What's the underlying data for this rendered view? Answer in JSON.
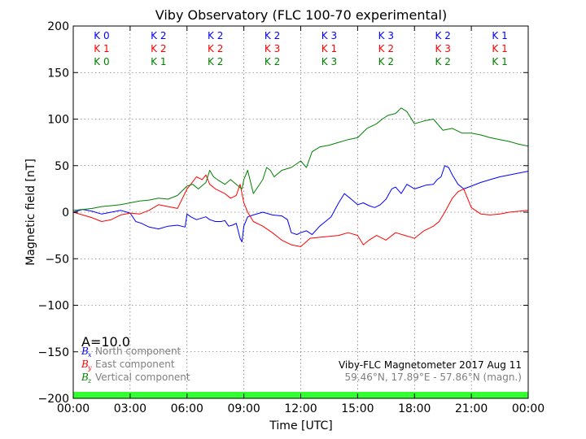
{
  "chart_data": {
    "type": "line",
    "title": "Viby Observatory (FLC 100-70 experimental)",
    "xlabel": "Time [UTC]",
    "ylabel": "Magnetic field [nT]",
    "xlim": [
      0,
      24
    ],
    "ylim": [
      -200,
      200
    ],
    "x_ticks": [
      0,
      3,
      6,
      9,
      12,
      15,
      18,
      21,
      24
    ],
    "x_tick_labels": [
      "00:00",
      "03:00",
      "06:00",
      "09:00",
      "12:00",
      "15:00",
      "18:00",
      "21:00",
      "00:00"
    ],
    "y_ticks": [
      -200,
      -150,
      -100,
      -50,
      0,
      50,
      100,
      150,
      200
    ],
    "y_tick_labels": [
      "−200",
      "−150",
      "−100",
      "−50",
      "0",
      "50",
      "100",
      "150",
      "200"
    ],
    "grid": true,
    "legend_position": "bottom-left",
    "activity_label": "A=10.0",
    "info_line1": "Viby-FLC Magnetometer 2017 Aug 11",
    "info_line2": "59.46°N, 17.89°E - 57.86°N (magn.)",
    "k_indices": {
      "x_centers": [
        1.5,
        4.5,
        7.5,
        10.5,
        13.5,
        16.5,
        19.5,
        22.5
      ],
      "rows": [
        {
          "labels": [
            "K 0",
            "K 2",
            "K 2",
            "K 2",
            "K 3",
            "K 3",
            "K 2",
            "K 1"
          ],
          "color": "#0000ff"
        },
        {
          "labels": [
            "K 1",
            "K 2",
            "K 2",
            "K 3",
            "K 1",
            "K 2",
            "K 3",
            "K 1"
          ],
          "color": "#ff0000"
        },
        {
          "labels": [
            "K 0",
            "K 1",
            "K 2",
            "K 2",
            "K 3",
            "K 2",
            "K 2",
            "K 1"
          ],
          "color": "#008000"
        }
      ]
    },
    "bottom_band": {
      "y_from": -200,
      "y_to": -193,
      "color": "#33ff33"
    },
    "series": [
      {
        "name": "North component",
        "symbol": "B",
        "subscript": "x",
        "color": "#0000ff",
        "x": [
          0,
          0.5,
          1,
          1.5,
          2,
          2.5,
          3,
          3.3,
          3.6,
          4,
          4.5,
          5,
          5.5,
          5.9,
          6.0,
          6.2,
          6.5,
          7.0,
          7.2,
          7.5,
          7.8,
          8.0,
          8.2,
          8.4,
          8.6,
          8.8,
          8.9,
          9.0,
          9.2,
          9.5,
          10.0,
          10.5,
          11.0,
          11.3,
          11.5,
          11.8,
          12.0,
          12.3,
          12.6,
          13.0,
          13.3,
          13.6,
          14.0,
          14.3,
          14.6,
          15.0,
          15.3,
          15.6,
          15.9,
          16.2,
          16.5,
          16.8,
          17.0,
          17.3,
          17.6,
          18.0,
          18.3,
          18.6,
          19.0,
          19.2,
          19.4,
          19.6,
          19.8,
          20.0,
          20.3,
          20.6,
          21.0,
          21.5,
          22.0,
          22.5,
          23.0,
          23.5,
          24.0
        ],
        "values": [
          0,
          3,
          1,
          -2,
          0,
          2,
          -1,
          -10,
          -12,
          -16,
          -18,
          -15,
          -14,
          -16,
          -2,
          -5,
          -8,
          -5,
          -8,
          -10,
          -10,
          -9,
          -15,
          -14,
          -12,
          -28,
          -32,
          -15,
          -5,
          -3,
          0,
          -3,
          -4,
          -8,
          -22,
          -24,
          -22,
          -20,
          -24,
          -15,
          -10,
          -5,
          10,
          20,
          15,
          8,
          10,
          7,
          5,
          8,
          14,
          25,
          27,
          20,
          30,
          25,
          27,
          29,
          30,
          35,
          38,
          50,
          48,
          40,
          30,
          25,
          28,
          32,
          35,
          38,
          40,
          42,
          44
        ]
      },
      {
        "name": "East component",
        "symbol": "B",
        "subscript": "y",
        "color": "#ff0000",
        "x": [
          0,
          0.5,
          1,
          1.5,
          2,
          2.5,
          3,
          3.5,
          4,
          4.5,
          5,
          5.5,
          6.0,
          6.2,
          6.5,
          6.8,
          7.0,
          7.2,
          7.5,
          8.0,
          8.3,
          8.6,
          8.8,
          9.0,
          9.2,
          9.5,
          10.0,
          10.5,
          11.0,
          11.5,
          12.0,
          12.5,
          13.0,
          13.5,
          14.0,
          14.5,
          15.0,
          15.3,
          15.6,
          16.0,
          16.5,
          17.0,
          17.5,
          18.0,
          18.5,
          19.0,
          19.3,
          19.6,
          20.0,
          20.3,
          20.6,
          21.0,
          21.5,
          22.0,
          22.5,
          23.0,
          23.5,
          24.0
        ],
        "values": [
          0,
          -3,
          -6,
          -10,
          -8,
          -3,
          -1,
          -2,
          2,
          8,
          6,
          4,
          25,
          30,
          38,
          35,
          40,
          30,
          25,
          20,
          15,
          18,
          30,
          10,
          0,
          -10,
          -15,
          -22,
          -30,
          -35,
          -37,
          -28,
          -27,
          -26,
          -25,
          -22,
          -25,
          -35,
          -30,
          -25,
          -30,
          -22,
          -25,
          -28,
          -20,
          -15,
          -10,
          0,
          15,
          22,
          25,
          5,
          -2,
          -3,
          -2,
          0,
          1,
          2
        ]
      },
      {
        "name": "Vertical component",
        "symbol": "B",
        "subscript": "z",
        "color": "#008000",
        "x": [
          0,
          0.5,
          1,
          1.5,
          2,
          2.5,
          3,
          3.5,
          4,
          4.5,
          5,
          5.5,
          6.0,
          6.3,
          6.6,
          7.0,
          7.2,
          7.4,
          7.6,
          8.0,
          8.3,
          8.6,
          8.9,
          9.0,
          9.2,
          9.5,
          10.0,
          10.2,
          10.4,
          10.6,
          11.0,
          11.5,
          12.0,
          12.3,
          12.6,
          13.0,
          13.5,
          14.0,
          14.5,
          15.0,
          15.5,
          16.0,
          16.3,
          16.6,
          17.0,
          17.3,
          17.6,
          18.0,
          18.5,
          19.0,
          19.5,
          20.0,
          20.5,
          21.0,
          21.5,
          22.0,
          22.5,
          23.0,
          23.5,
          24.0
        ],
        "values": [
          2,
          3,
          4,
          6,
          7,
          8,
          10,
          12,
          13,
          15,
          14,
          18,
          28,
          30,
          25,
          32,
          45,
          38,
          35,
          30,
          35,
          30,
          25,
          35,
          45,
          20,
          35,
          48,
          45,
          38,
          45,
          48,
          55,
          48,
          65,
          70,
          72,
          75,
          78,
          80,
          90,
          95,
          100,
          104,
          106,
          112,
          108,
          95,
          98,
          100,
          88,
          90,
          85,
          85,
          83,
          80,
          78,
          76,
          73,
          71
        ]
      }
    ]
  }
}
